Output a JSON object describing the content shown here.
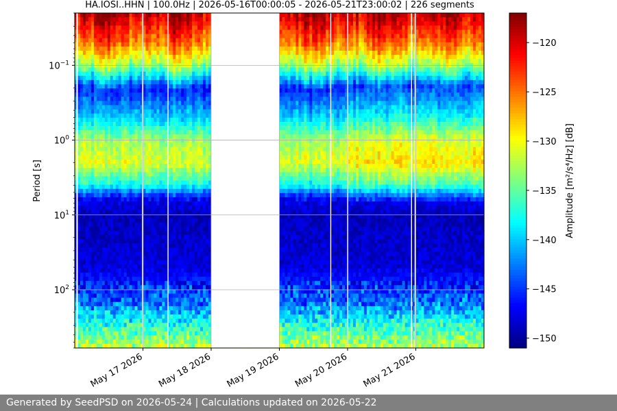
{
  "chart_data": {
    "type": "heatmap",
    "title": "HA.IOSI..HHN | 100.0Hz | 2026-05-16T00:00:05 - 2026-05-21T23:00:02 | 226 segments",
    "ylabel": "Period [s]",
    "colorbar_label": "Amplitude [m²/s⁴/Hz] [dB]",
    "y_scale": "log",
    "y_axis_inverted": true,
    "ylim_period_s": [
      0.02,
      600
    ],
    "y_ticks": [
      {
        "value": 0.1,
        "base": "10",
        "exp": "−1"
      },
      {
        "value": 1,
        "base": "10",
        "exp": "0"
      },
      {
        "value": 10,
        "base": "10",
        "exp": "1"
      },
      {
        "value": 100,
        "base": "10",
        "exp": "2"
      }
    ],
    "x_range_days": [
      "2026-05-16",
      "2026-05-22"
    ],
    "x_ticks": [
      {
        "date": "2026-05-17",
        "label": "May 17 2026"
      },
      {
        "date": "2026-05-18",
        "label": "May 18 2026"
      },
      {
        "date": "2026-05-19",
        "label": "May 19 2026"
      },
      {
        "date": "2026-05-20",
        "label": "May 20 2026"
      },
      {
        "date": "2026-05-21",
        "label": "May 21 2026"
      }
    ],
    "grid": true,
    "colormap": "jet",
    "clim_db": [
      -151,
      -117
    ],
    "colorbar_ticks": [
      "−120",
      "−125",
      "−130",
      "−135",
      "−140",
      "−145",
      "−150"
    ],
    "colorbar_tick_values": [
      -120,
      -125,
      -130,
      -135,
      -140,
      -145,
      -150
    ],
    "data_gaps": [
      {
        "start": "2026-05-16T00:35",
        "end": "2026-05-16T01:05"
      },
      {
        "start": "2026-05-16T23:40",
        "end": "2026-05-17T00:10"
      },
      {
        "start": "2026-05-17T08:40",
        "end": "2026-05-17T09:00"
      },
      {
        "start": "2026-05-18T00:00",
        "end": "2026-05-19T00:00"
      },
      {
        "start": "2026-05-19T17:55",
        "end": "2026-05-19T18:15"
      },
      {
        "start": "2026-05-19T23:50",
        "end": "2026-05-20T00:15"
      },
      {
        "start": "2026-05-20T22:20",
        "end": "2026-05-20T22:40"
      },
      {
        "start": "2026-05-20T23:35",
        "end": "2026-05-21T00:00"
      }
    ],
    "period_bands_db": [
      {
        "period_s": 0.02,
        "level_db": -120
      },
      {
        "period_s": 0.05,
        "level_db": -126
      },
      {
        "period_s": 0.1,
        "level_db": -134
      },
      {
        "period_s": 0.2,
        "level_db": -146
      },
      {
        "period_s": 0.5,
        "level_db": -140
      },
      {
        "period_s": 1,
        "level_db": -133
      },
      {
        "period_s": 2,
        "level_db": -131
      },
      {
        "period_s": 4,
        "level_db": -138
      },
      {
        "period_s": 6,
        "level_db": -147
      },
      {
        "period_s": 10,
        "level_db": -149
      },
      {
        "period_s": 50,
        "level_db": -148
      },
      {
        "period_s": 150,
        "level_db": -143
      },
      {
        "period_s": 300,
        "level_db": -137
      },
      {
        "period_s": 600,
        "level_db": -132
      }
    ]
  },
  "footer": {
    "text": "Generated by SeedPSD on 2026-05-24 | Calculations updated on 2026-05-22"
  }
}
